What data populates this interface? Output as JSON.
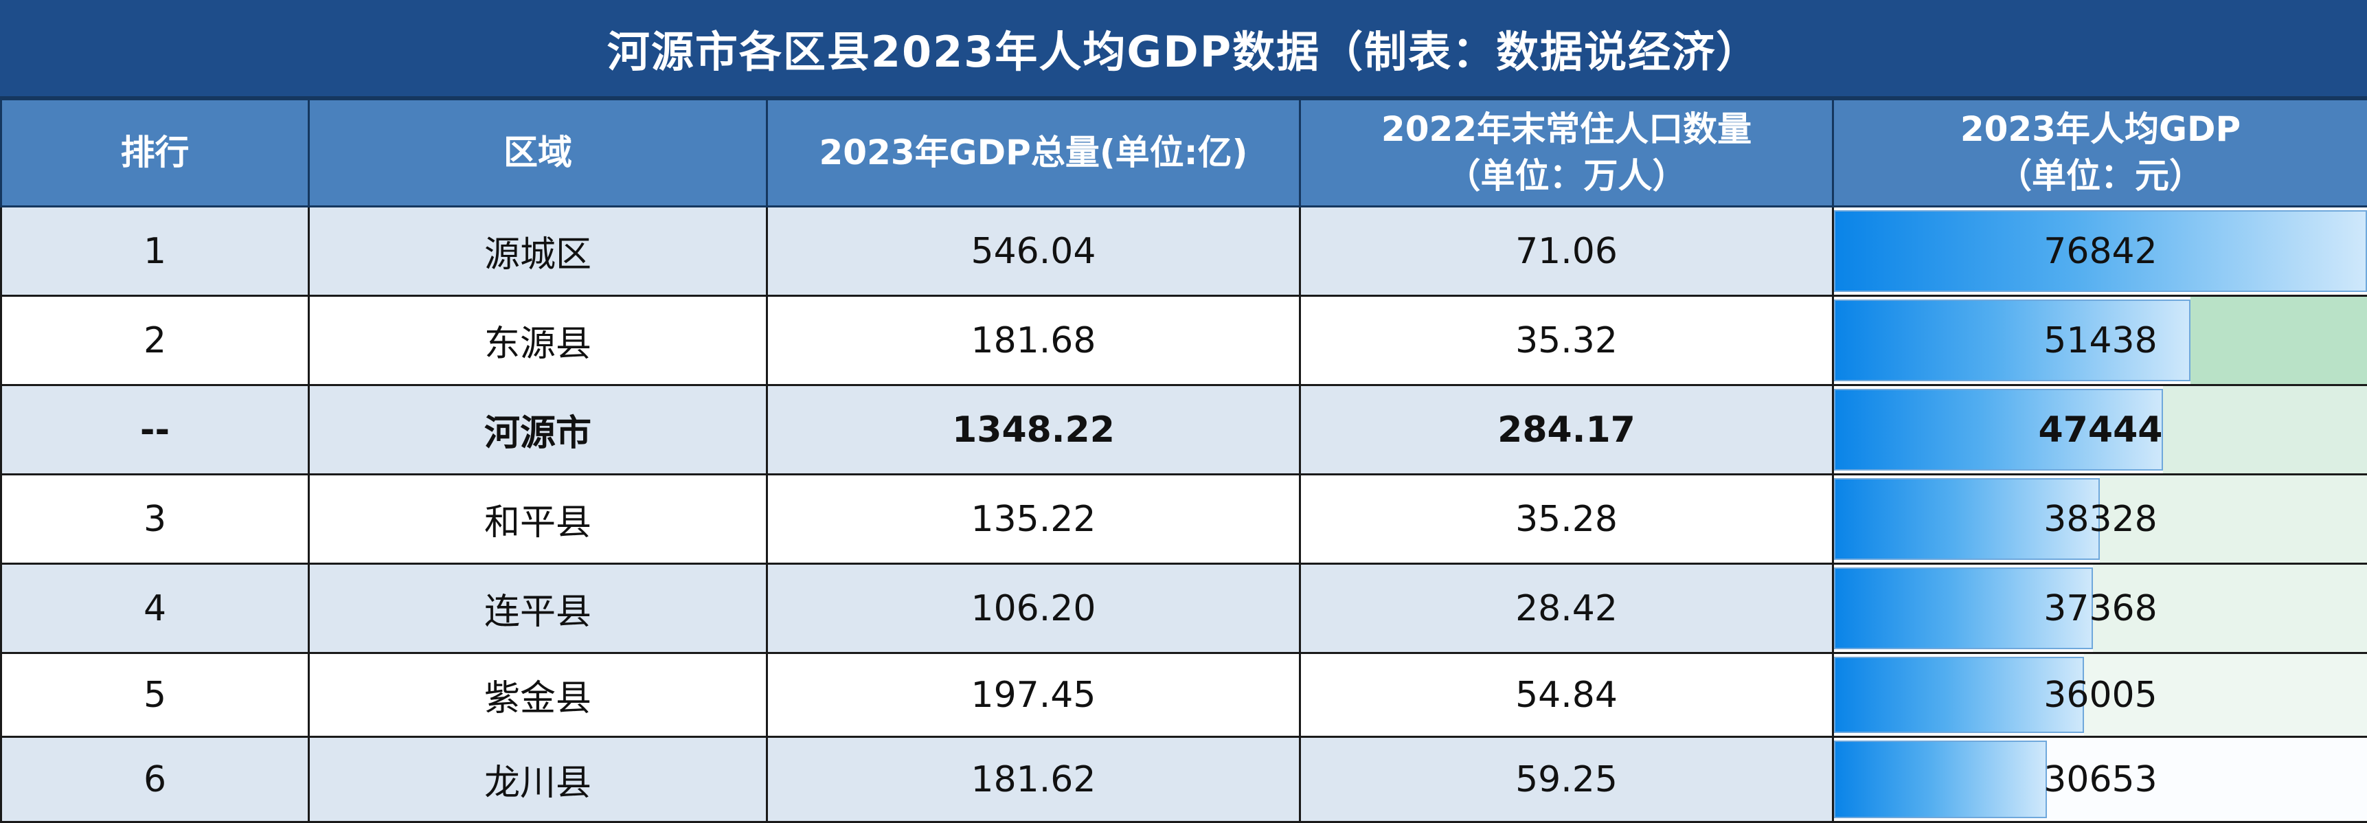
{
  "title": "河源市各区县2023年人均GDP数据（制表：数据说经济）",
  "headers": {
    "rank": "排行",
    "region": "区域",
    "gdp_l1": "2023年GDP总量(单位:亿)",
    "pop_l1": "2022年末常住人口数量",
    "pop_l2": "（单位：万人）",
    "pc_l1": "2023年人均GDP",
    "pc_l2": "（单位：元）"
  },
  "bar_max": 76842,
  "colors": {
    "header_bg": "#4a81bd",
    "title_bg": "#1e4d8a",
    "bar_start": "#0a84e8",
    "bar_end": "#cfe8fb"
  },
  "rows": [
    {
      "rank": "1",
      "region": "源城区",
      "gdp": "546.04",
      "pop": "71.06",
      "pc": "76842",
      "pc_num": 76842,
      "bold": false,
      "bg": "#dce6f1",
      "fill": "#dce6f1"
    },
    {
      "rank": "2",
      "region": "东源县",
      "gdp": "181.68",
      "pop": "35.32",
      "pc": "51438",
      "pc_num": 51438,
      "bold": false,
      "bg": "#ffffff",
      "fill": "#b9e2c7"
    },
    {
      "rank": "--",
      "region": "河源市",
      "gdp": "1348.22",
      "pop": "284.17",
      "pc": "47444",
      "pc_num": 47444,
      "bold": true,
      "bg": "#dce6f1",
      "fill": "#dcefe3"
    },
    {
      "rank": "3",
      "region": "和平县",
      "gdp": "135.22",
      "pop": "35.28",
      "pc": "38328",
      "pc_num": 38328,
      "bold": false,
      "bg": "#ffffff",
      "fill": "#e6f3ea"
    },
    {
      "rank": "4",
      "region": "连平县",
      "gdp": "106.20",
      "pop": "28.42",
      "pc": "37368",
      "pc_num": 37368,
      "bold": false,
      "bg": "#dce6f1",
      "fill": "#e8f4ec"
    },
    {
      "rank": "5",
      "region": "紫金县",
      "gdp": "197.45",
      "pop": "54.84",
      "pc": "36005",
      "pc_num": 36005,
      "bold": false,
      "bg": "#ffffff",
      "fill": "#eef7f1"
    },
    {
      "rank": "6",
      "region": "龙川县",
      "gdp": "181.62",
      "pop": "59.25",
      "pc": "30653",
      "pc_num": 30653,
      "bold": false,
      "bg": "#dce6f1",
      "fill": "#fbfdff"
    }
  ]
}
